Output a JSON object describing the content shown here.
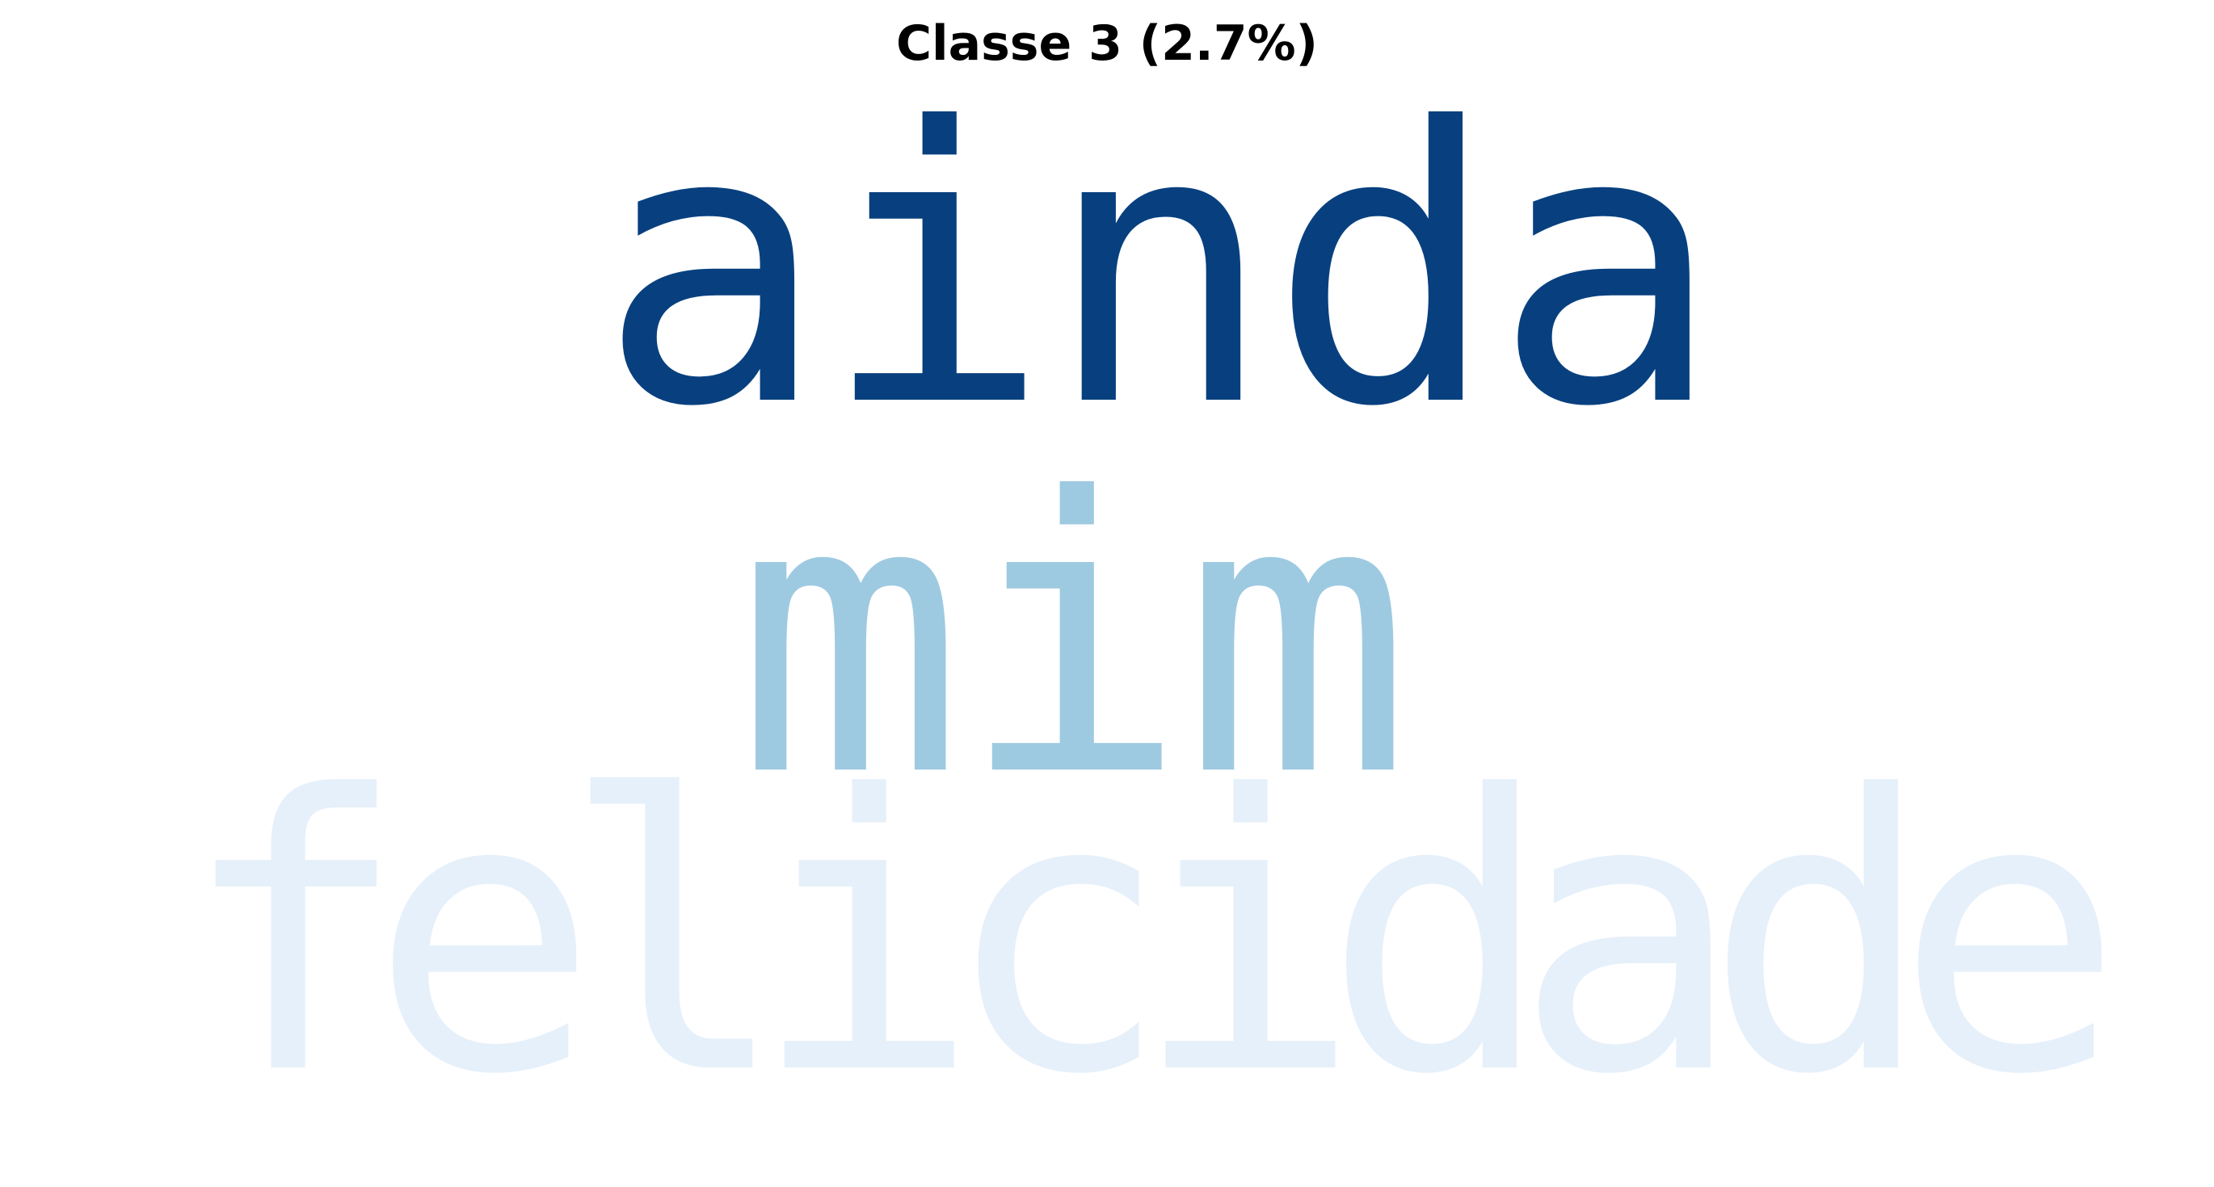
{
  "title": "Classe 3 (2.7%)",
  "wordcloud": {
    "colormap": "blues",
    "words": [
      {
        "text": "ainda",
        "color": "#08407f"
      },
      {
        "text": "mim",
        "color": "#9ecae1"
      },
      {
        "text": "felicidade",
        "color": "#e6f0fa"
      }
    ]
  }
}
